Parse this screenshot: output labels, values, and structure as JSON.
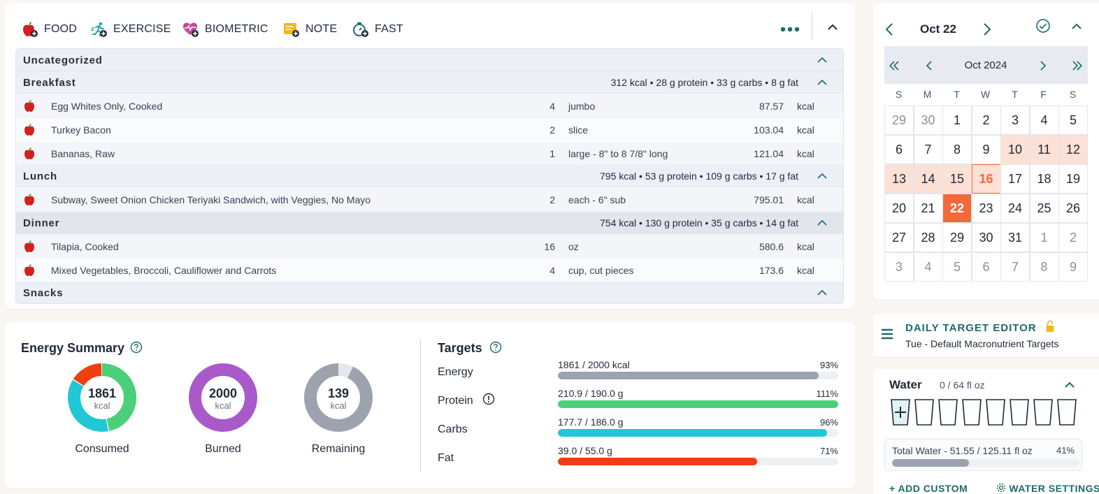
{
  "toolbar": {
    "buttons": [
      {
        "label": "FOOD",
        "icon": "apple-plus-icon"
      },
      {
        "label": "EXERCISE",
        "icon": "runner-plus-icon"
      },
      {
        "label": "BIOMETRIC",
        "icon": "heart-plus-icon"
      },
      {
        "label": "NOTE",
        "icon": "note-plus-icon"
      },
      {
        "label": "FAST",
        "icon": "stopwatch-plus-icon"
      }
    ]
  },
  "diary": {
    "meals": [
      {
        "name": "Uncategorized",
        "summary": "",
        "items": []
      },
      {
        "name": "Breakfast",
        "summary": "312 kcal • 28 g protein • 33 g carbs • 8 g fat",
        "items": [
          {
            "name": "Egg Whites Only, Cooked",
            "qty": "4",
            "unit": "jumbo",
            "kcal": "87.57",
            "kcal_unit": "kcal"
          },
          {
            "name": "Turkey Bacon",
            "qty": "2",
            "unit": "slice",
            "kcal": "103.04",
            "kcal_unit": "kcal"
          },
          {
            "name": "Bananas, Raw",
            "qty": "1",
            "unit": "large - 8\" to 8 7/8\" long",
            "kcal": "121.04",
            "kcal_unit": "kcal"
          }
        ]
      },
      {
        "name": "Lunch",
        "summary": "795 kcal • 53 g protein • 109 g carbs • 17 g fat",
        "items": [
          {
            "name": "Subway, Sweet Onion Chicken Teriyaki Sandwich, with Veggies, No Mayo",
            "qty": "2",
            "unit": "each - 6\" sub",
            "kcal": "795.01",
            "kcal_unit": "kcal"
          }
        ]
      },
      {
        "name": "Dinner",
        "summary": "754 kcal • 130 g protein • 35 g carbs • 14 g fat",
        "items": [
          {
            "name": "Tilapia, Cooked",
            "qty": "16",
            "unit": "oz",
            "kcal": "580.6",
            "kcal_unit": "kcal"
          },
          {
            "name": "Mixed Vegetables, Broccoli, Cauliflower and Carrots",
            "qty": "4",
            "unit": "cup, cut pieces",
            "kcal": "173.6",
            "kcal_unit": "kcal"
          }
        ]
      },
      {
        "name": "Snacks",
        "summary": "",
        "items": []
      }
    ]
  },
  "energy_summary": {
    "title": "Energy Summary",
    "consumed": {
      "value": "1861",
      "unit": "kcal",
      "label": "Consumed",
      "segments": [
        0.47,
        0.37,
        0.16
      ],
      "colors": [
        "#4ccf7a",
        "#22c7d6",
        "#ee3e12"
      ]
    },
    "burned": {
      "value": "2000",
      "unit": "kcal",
      "label": "Burned",
      "color": "#a95ac8"
    },
    "remaining": {
      "value": "139",
      "unit": "kcal",
      "label": "Remaining",
      "fraction_filled": 0.93,
      "color": "#9ca3af",
      "rest_color": "#e5e7eb"
    }
  },
  "targets": {
    "title": "Targets",
    "rows": [
      {
        "name": "Energy",
        "value": "1861 / 2000 kcal",
        "pct": "93%",
        "fill": 0.93,
        "color": "#9ca3af",
        "has_info": false
      },
      {
        "name": "Protein",
        "value": "210.9 / 190.0 g",
        "pct": "111%",
        "fill": 1.0,
        "color": "#4ccf7a",
        "has_info": true
      },
      {
        "name": "Carbs",
        "value": "177.7 / 186.0 g",
        "pct": "96%",
        "fill": 0.96,
        "color": "#22c7d6",
        "has_info": false
      },
      {
        "name": "Fat",
        "value": "39.0 / 55.0 g",
        "pct": "71%",
        "fill": 0.71,
        "color": "#ee3e12",
        "has_info": false
      }
    ]
  },
  "calendar": {
    "date_title": "Oct 22",
    "month_title": "Oct 2024",
    "weekdays": [
      "S",
      "M",
      "T",
      "W",
      "T",
      "F",
      "S"
    ],
    "weeks": [
      [
        {
          "d": "29",
          "s": "muted"
        },
        {
          "d": "30",
          "s": "muted"
        },
        {
          "d": "1",
          "s": ""
        },
        {
          "d": "2",
          "s": ""
        },
        {
          "d": "3",
          "s": ""
        },
        {
          "d": "4",
          "s": ""
        },
        {
          "d": "5",
          "s": ""
        }
      ],
      [
        {
          "d": "6",
          "s": ""
        },
        {
          "d": "7",
          "s": ""
        },
        {
          "d": "8",
          "s": ""
        },
        {
          "d": "9",
          "s": ""
        },
        {
          "d": "10",
          "s": "hl"
        },
        {
          "d": "11",
          "s": "hl"
        },
        {
          "d": "12",
          "s": "hl"
        }
      ],
      [
        {
          "d": "13",
          "s": "hl"
        },
        {
          "d": "14",
          "s": "hl"
        },
        {
          "d": "15",
          "s": "hl"
        },
        {
          "d": "16",
          "s": "today"
        },
        {
          "d": "17",
          "s": ""
        },
        {
          "d": "18",
          "s": ""
        },
        {
          "d": "19",
          "s": ""
        }
      ],
      [
        {
          "d": "20",
          "s": ""
        },
        {
          "d": "21",
          "s": ""
        },
        {
          "d": "22",
          "s": "sel"
        },
        {
          "d": "23",
          "s": ""
        },
        {
          "d": "24",
          "s": ""
        },
        {
          "d": "25",
          "s": ""
        },
        {
          "d": "26",
          "s": ""
        }
      ],
      [
        {
          "d": "27",
          "s": ""
        },
        {
          "d": "28",
          "s": ""
        },
        {
          "d": "29",
          "s": ""
        },
        {
          "d": "30",
          "s": ""
        },
        {
          "d": "31",
          "s": ""
        },
        {
          "d": "1",
          "s": "muted"
        },
        {
          "d": "2",
          "s": "muted"
        }
      ],
      [
        {
          "d": "3",
          "s": "muted"
        },
        {
          "d": "4",
          "s": "muted"
        },
        {
          "d": "5",
          "s": "muted"
        },
        {
          "d": "6",
          "s": "muted"
        },
        {
          "d": "7",
          "s": "muted"
        },
        {
          "d": "8",
          "s": "muted"
        },
        {
          "d": "9",
          "s": "muted"
        }
      ]
    ]
  },
  "target_editor": {
    "title": "DAILY TARGET EDITOR",
    "subtitle": "Tue - Default Macronutrient Targets"
  },
  "water": {
    "title": "Water",
    "count": "0 / 64 fl oz",
    "glasses": 8,
    "total_label": "Total Water - 51.55 / 125.11 fl oz",
    "total_pct": "41%",
    "fill": 0.41,
    "add_custom": "+ ADD CUSTOM",
    "settings": "WATER SETTINGS"
  },
  "colors": {
    "accent_teal": "#1d6a6a",
    "calendar_selected": "#f26a3c",
    "calendar_highlight": "#fde0d6"
  }
}
